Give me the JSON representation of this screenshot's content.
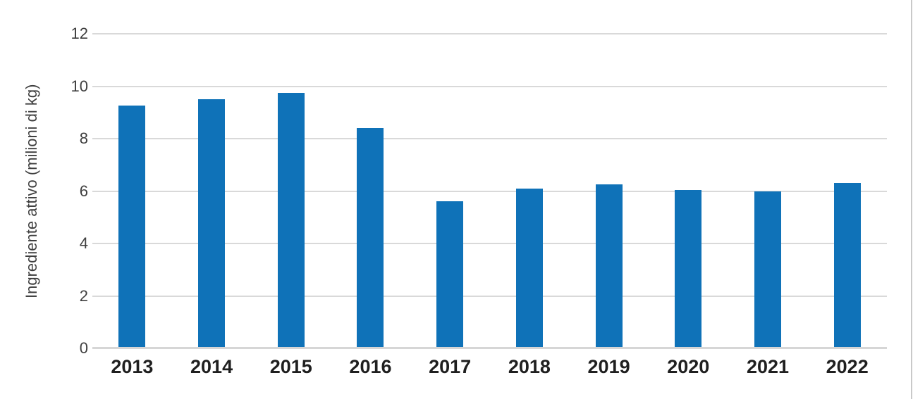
{
  "chart_data": {
    "type": "bar",
    "title": "",
    "categories": [
      "2013",
      "2014",
      "2015",
      "2016",
      "2017",
      "2018",
      "2019",
      "2020",
      "2021",
      "2022"
    ],
    "values": [
      9.25,
      9.5,
      9.75,
      8.4,
      5.6,
      6.1,
      6.25,
      6.05,
      6.0,
      6.3
    ],
    "xlabel": "",
    "ylabel": "Ingrediente attivo (milioni di kg)",
    "ylim": [
      0,
      12
    ],
    "y_ticks": [
      0,
      2,
      4,
      6,
      8,
      10,
      12
    ],
    "grid": true,
    "legend": false,
    "bar_color": "#0f72b8",
    "gridline_color": "#d9d9d9",
    "axis_line_color": "#d6d6d6",
    "tick_label_color": "#3f3f3f",
    "category_label_color": "#1f1f1f",
    "frame_border_color": "#c9c9c9"
  }
}
